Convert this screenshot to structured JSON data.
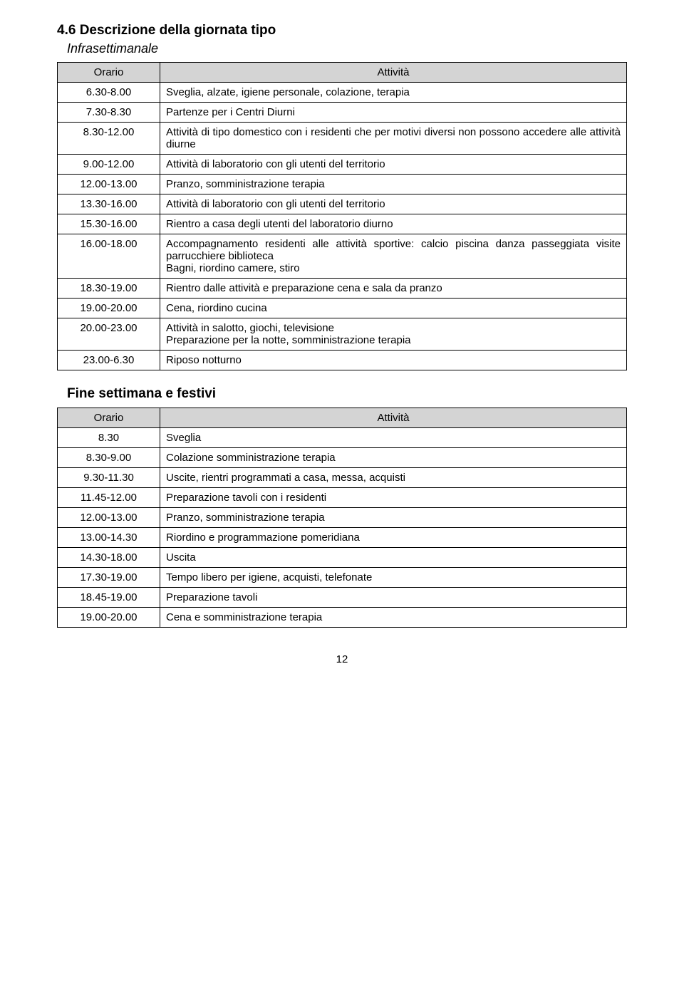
{
  "heading": "4.6 Descrizione della giornata tipo",
  "subtitle1": "Infrasettimanale",
  "subtitle2": "Fine settimana e festivi",
  "col_orario": "Orario",
  "col_attivita": "Attività",
  "table1": {
    "rows": [
      {
        "orario": "6.30-8.00",
        "attivita": "Sveglia, alzate, igiene personale, colazione, terapia"
      },
      {
        "orario": "7.30-8.30",
        "attivita": "Partenze per i Centri Diurni"
      },
      {
        "orario": "8.30-12.00",
        "attivita": "Attività di tipo domestico con i residenti che per motivi diversi non possono accedere alle attività diurne"
      },
      {
        "orario": "9.00-12.00",
        "attivita": "Attività di laboratorio con gli utenti del territorio"
      },
      {
        "orario": "12.00-13.00",
        "attivita": "Pranzo, somministrazione terapia"
      },
      {
        "orario": "13.30-16.00",
        "attivita": "Attività di laboratorio con gli utenti del territorio"
      },
      {
        "orario": "15.30-16.00",
        "attivita": "Rientro a casa degli utenti del laboratorio diurno"
      },
      {
        "orario": "16.00-18.00",
        "attivita": "Accompagnamento residenti alle attività sportive: calcio piscina danza passeggiata visite parrucchiere biblioteca\nBagni, riordino camere, stiro"
      },
      {
        "orario": "18.30-19.00",
        "attivita": "Rientro dalle attività e preparazione cena e sala da pranzo"
      },
      {
        "orario": "19.00-20.00",
        "attivita": "Cena, riordino cucina"
      },
      {
        "orario": "20.00-23.00",
        "attivita": "Attività in salotto, giochi, televisione\nPreparazione per la notte, somministrazione terapia"
      },
      {
        "orario": "23.00-6.30",
        "attivita": "Riposo notturno"
      }
    ]
  },
  "table2": {
    "rows": [
      {
        "orario": "8.30",
        "attivita": "Sveglia"
      },
      {
        "orario": "8.30-9.00",
        "attivita": "Colazione somministrazione terapia"
      },
      {
        "orario": "9.30-11.30",
        "attivita": "Uscite, rientri programmati a casa, messa, acquisti"
      },
      {
        "orario": "11.45-12.00",
        "attivita": "Preparazione tavoli con i residenti"
      },
      {
        "orario": "12.00-13.00",
        "attivita": "Pranzo, somministrazione terapia"
      },
      {
        "orario": "13.00-14.30",
        "attivita": "Riordino e programmazione pomeridiana"
      },
      {
        "orario": "14.30-18.00",
        "attivita": "Uscita"
      },
      {
        "orario": "17.30-19.00",
        "attivita": "Tempo libero per igiene, acquisti, telefonate"
      },
      {
        "orario": "18.45-19.00",
        "attivita": "Preparazione tavoli"
      },
      {
        "orario": "19.00-20.00",
        "attivita": "Cena e somministrazione terapia"
      }
    ]
  },
  "page_number": "12",
  "colors": {
    "header_bg": "#d4d4d4",
    "text": "#000000",
    "page_bg": "#ffffff",
    "border": "#000000"
  }
}
